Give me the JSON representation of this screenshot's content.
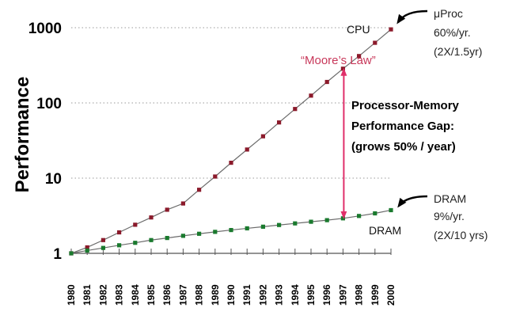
{
  "chart_data": {
    "type": "line",
    "y_scale": "log",
    "ylabel": "Performance",
    "ylim": [
      1,
      1000
    ],
    "y_ticks": [
      {
        "value": 1,
        "label": "1"
      },
      {
        "value": 10,
        "label": "10"
      },
      {
        "value": 100,
        "label": "100"
      },
      {
        "value": 1000,
        "label": "1000"
      }
    ],
    "grid": "horizontal dotted",
    "x": [
      "1980",
      "1981",
      "1982",
      "1983",
      "1984",
      "1985",
      "1986",
      "1987",
      "1988",
      "1989",
      "1990",
      "1991",
      "1992",
      "1993",
      "1994",
      "1995",
      "1996",
      "1997",
      "1998",
      "1999",
      "2000"
    ],
    "series": [
      {
        "name": "CPU",
        "color": "#8b1a2b",
        "values": [
          1,
          1.2,
          1.5,
          1.9,
          2.4,
          3.0,
          3.8,
          4.6,
          7.0,
          10.5,
          16,
          24,
          36,
          55,
          83,
          125,
          190,
          285,
          420,
          630,
          950
        ]
      },
      {
        "name": "DRAM",
        "color": "#1a7a2e",
        "values": [
          1,
          1.09,
          1.18,
          1.28,
          1.38,
          1.5,
          1.6,
          1.71,
          1.82,
          1.93,
          2.04,
          2.15,
          2.26,
          2.38,
          2.5,
          2.63,
          2.76,
          2.92,
          3.14,
          3.4,
          3.75
        ]
      }
    ],
    "annotations": {
      "cpu_label": "CPU",
      "cpu_rate": [
        "μProc",
        "60%/yr.",
        "(2X/1.5yr)"
      ],
      "moores_law": "“Moore’s Law”",
      "gap": [
        "Processor-Memory",
        "Performance Gap:",
        "(grows 50% / year)"
      ],
      "dram_rate": [
        "DRAM",
        "9%/yr.",
        "(2X/10 yrs)"
      ],
      "dram_label": "DRAM"
    },
    "colors": {
      "cpu": "#8b1a2b",
      "dram": "#1a7a2e",
      "moore": "#c8385a",
      "gap_arrow": "#e0306a"
    }
  }
}
